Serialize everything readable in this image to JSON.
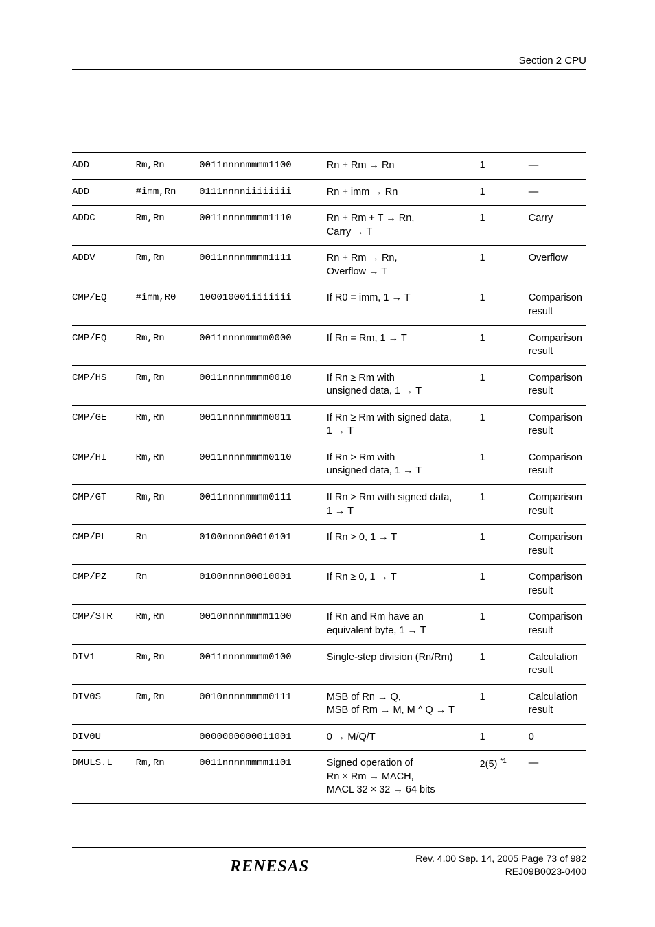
{
  "header": {
    "section_label": "Section 2   CPU"
  },
  "table": {
    "rows": [
      {
        "mnemonic": "ADD",
        "operands": "Rm,Rn",
        "code": "0011nnnnmmmm1100",
        "desc": "Rn + Rm → Rn",
        "cycles": "1",
        "tbit": "—"
      },
      {
        "mnemonic": "ADD",
        "operands": "#imm,Rn",
        "code": "0111nnnniiiiiiii",
        "desc": "Rn + imm → Rn",
        "cycles": "1",
        "tbit": "—"
      },
      {
        "mnemonic": "ADDC",
        "operands": "Rm,Rn",
        "code": "0011nnnnmmmm1110",
        "desc": "Rn + Rm + T → Rn,\nCarry → T",
        "cycles": "1",
        "tbit": "Carry"
      },
      {
        "mnemonic": "ADDV",
        "operands": "Rm,Rn",
        "code": "0011nnnnmmmm1111",
        "desc": "Rn + Rm → Rn,\nOverflow → T",
        "cycles": "1",
        "tbit": "Overflow"
      },
      {
        "mnemonic": "CMP/EQ",
        "operands": "#imm,R0",
        "code": "10001000iiiiiiii",
        "desc": "If R0 = imm, 1 → T",
        "cycles": "1",
        "tbit": "Comparison result"
      },
      {
        "mnemonic": "CMP/EQ",
        "operands": "Rm,Rn",
        "code": "0011nnnnmmmm0000",
        "desc": "If Rn = Rm, 1 → T",
        "cycles": "1",
        "tbit": "Comparison result"
      },
      {
        "mnemonic": "CMP/HS",
        "operands": "Rm,Rn",
        "code": "0011nnnnmmmm0010",
        "desc": "If Rn ≥ Rm with\nunsigned data, 1 → T",
        "cycles": "1",
        "tbit": "Comparison result"
      },
      {
        "mnemonic": "CMP/GE",
        "operands": "Rm,Rn",
        "code": "0011nnnnmmmm0011",
        "desc": "If Rn ≥ Rm with signed data,\n1 → T",
        "cycles": "1",
        "tbit": "Comparison result"
      },
      {
        "mnemonic": "CMP/HI",
        "operands": "Rm,Rn",
        "code": "0011nnnnmmmm0110",
        "desc": "If Rn > Rm with\nunsigned data, 1 → T",
        "cycles": "1",
        "tbit": "Comparison result"
      },
      {
        "mnemonic": "CMP/GT",
        "operands": "Rm,Rn",
        "code": "0011nnnnmmmm0111",
        "desc": "If Rn > Rm with signed data,\n1 → T",
        "cycles": "1",
        "tbit": "Comparison result"
      },
      {
        "mnemonic": "CMP/PL",
        "operands": "Rn",
        "code": "0100nnnn00010101",
        "desc": "If Rn > 0, 1 → T",
        "cycles": "1",
        "tbit": "Comparison result"
      },
      {
        "mnemonic": "CMP/PZ",
        "operands": "Rn",
        "code": "0100nnnn00010001",
        "desc": "If Rn ≥ 0, 1 → T",
        "cycles": "1",
        "tbit": "Comparison result"
      },
      {
        "mnemonic": "CMP/STR",
        "operands": "Rm,Rn",
        "code": "0010nnnnmmmm1100",
        "desc": "If Rn and Rm have an\nequivalent byte, 1 → T",
        "cycles": "1",
        "tbit": "Comparison result"
      },
      {
        "mnemonic": "DIV1",
        "operands": "Rm,Rn",
        "code": "0011nnnnmmmm0100",
        "desc": "Single-step division (Rn/Rm)",
        "cycles": "1",
        "tbit": "Calculation result"
      },
      {
        "mnemonic": "DIV0S",
        "operands": "Rm,Rn",
        "code": "0010nnnnmmmm0111",
        "desc": "MSB of Rn → Q,\nMSB of Rm → M, M ^ Q → T",
        "cycles": "1",
        "tbit": "Calculation result"
      },
      {
        "mnemonic": "DIV0U",
        "operands": "",
        "code": "0000000000011001",
        "desc": "0 → M/Q/T",
        "cycles": "1",
        "tbit": "0"
      },
      {
        "mnemonic": "DMULS.L",
        "operands": "Rm,Rn",
        "code": "0011nnnnmmmm1101",
        "desc": "Signed operation of\nRn × Rm → MACH,\nMACL 32 × 32 → 64 bits",
        "cycles": "2(5)",
        "cycles_note": "*1",
        "tbit": "—"
      }
    ]
  },
  "footer": {
    "logo_text": "RENESAS",
    "line1": "Rev. 4.00  Sep. 14, 2005  Page 73 of 982",
    "line2": "REJ09B0023-0400"
  }
}
